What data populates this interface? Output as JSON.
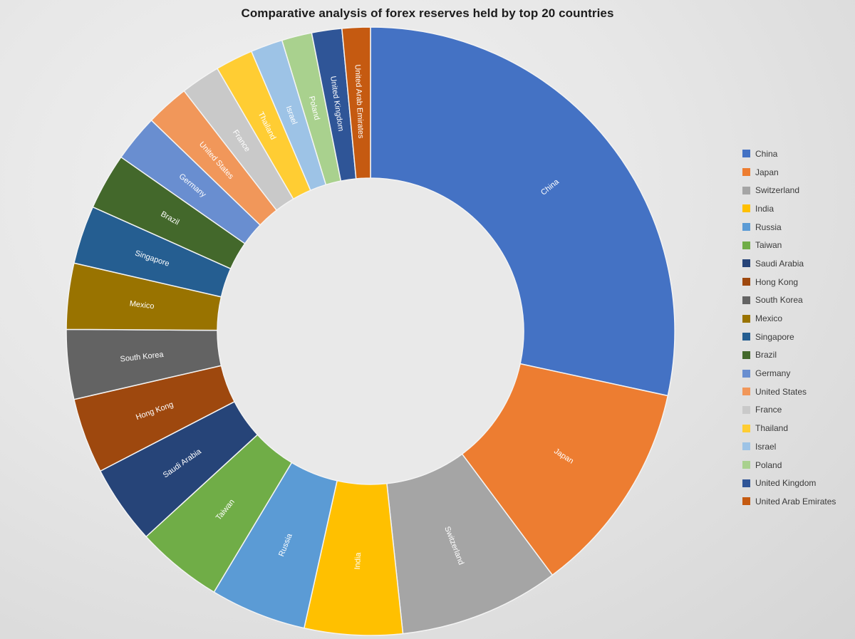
{
  "title": "Comparative analysis of forex reserves held by top 20 countries",
  "chart_data": {
    "type": "pie",
    "subtype": "doughnut",
    "title": "Comparative analysis of forex reserves held by top 20 countries",
    "units": "percent share of total (estimated from slice angles; no numeric labels shown)",
    "start_angle_deg": 0,
    "direction": "clockwise",
    "inner_radius_ratio": 0.5,
    "legend_position": "right",
    "slice_labels": "category names, white, rotated radially inside slices",
    "categories": [
      "China",
      "Japan",
      "Switzerland",
      "India",
      "Russia",
      "Taiwan",
      "Saudi Arabia",
      "Hong Kong",
      "South Korea",
      "Mexico",
      "Singapore",
      "Brazil",
      "Germany",
      "United States",
      "France",
      "Thailand",
      "Israel",
      "Poland",
      "United Kingdom",
      "United Arab Emirates"
    ],
    "values": [
      28.4,
      11.4,
      8.5,
      5.2,
      5.1,
      4.6,
      4.2,
      4.0,
      3.7,
      3.5,
      3.1,
      3.0,
      2.5,
      2.3,
      2.1,
      2.0,
      1.7,
      1.6,
      1.6,
      1.5
    ],
    "colors": [
      "#4472C4",
      "#ED7D31",
      "#A5A5A5",
      "#FFC000",
      "#5B9BD5",
      "#70AD47",
      "#264478",
      "#9E480E",
      "#636363",
      "#997300",
      "#255E91",
      "#43682B",
      "#698ED0",
      "#F1975A",
      "#C9C9C9",
      "#FFCD33",
      "#9DC3E6",
      "#A9D18E",
      "#2F5597",
      "#C55A11"
    ]
  },
  "style": {
    "background": "#E6E6E6",
    "hole_fill": "#E9E9E9",
    "slice_border": "#F4F4F4",
    "title_color": "#1C1C1C",
    "legend_text_color": "#3A3A3A"
  }
}
